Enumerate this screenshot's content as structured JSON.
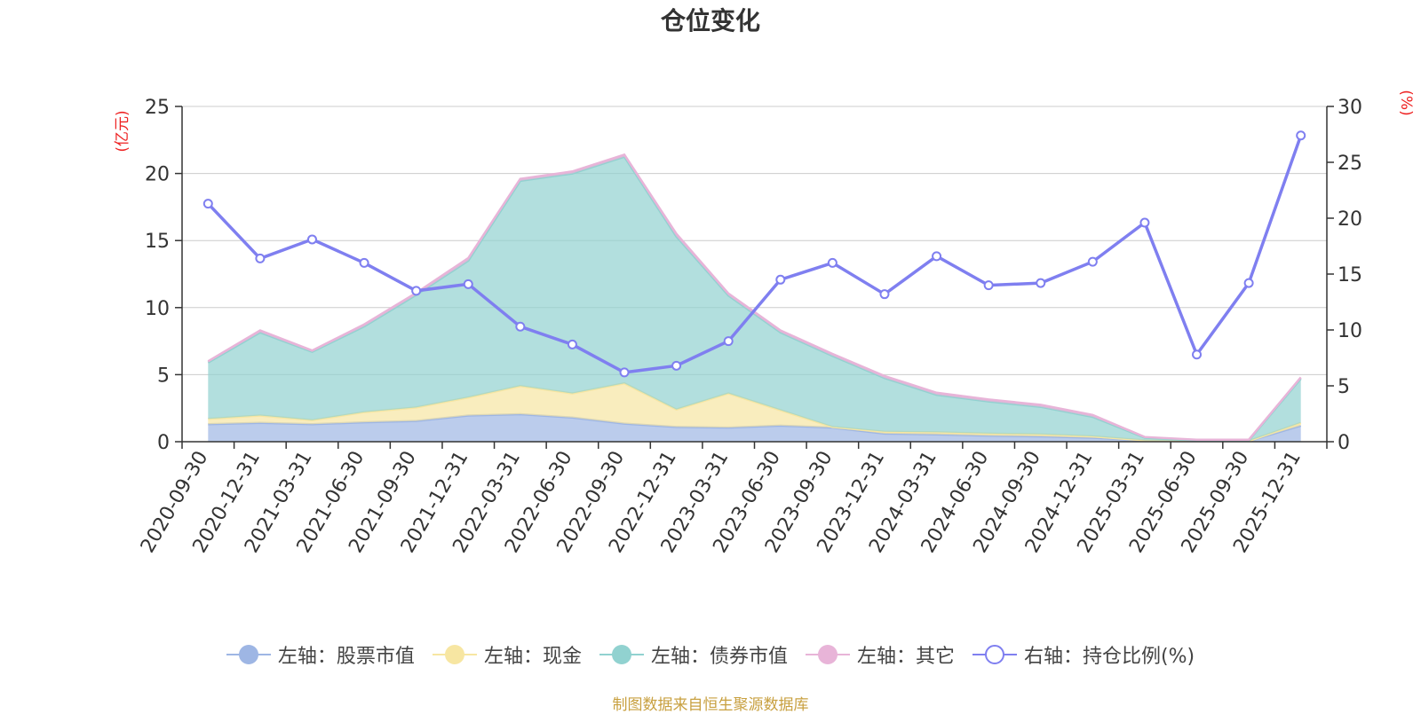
{
  "title": "仓位变化",
  "footer": "制图数据来自恒生聚源数据库",
  "chart_data": {
    "type": "area",
    "title": "仓位变化",
    "left_axis": {
      "label": "(亿元)",
      "min": 0,
      "max": 25,
      "ticks": [
        "0",
        "5",
        "10",
        "15",
        "20",
        "25"
      ]
    },
    "right_axis": {
      "label": "(%)",
      "min": 0,
      "max": 30,
      "ticks": [
        "0",
        "5",
        "10",
        "15",
        "20",
        "25",
        "30"
      ]
    },
    "categories": [
      "2020-09-30",
      "2020-12-31",
      "2021-03-31",
      "2021-06-30",
      "2021-09-30",
      "2021-12-31",
      "2022-03-31",
      "2022-06-30",
      "2022-09-30",
      "2022-12-31",
      "2023-03-31",
      "2023-06-30",
      "2023-09-30",
      "2023-12-31",
      "2024-03-31",
      "2024-06-30",
      "2024-09-30",
      "2024-12-31",
      "2025-03-31",
      "2025-06-30",
      "2025-09-30",
      "2025-12-31"
    ],
    "series": [
      {
        "name": "左轴：股票市值",
        "axis": "left",
        "stack": true,
        "color": "#9eb6e4",
        "values": [
          1.3,
          1.4,
          1.3,
          1.45,
          1.55,
          1.95,
          2.05,
          1.8,
          1.35,
          1.1,
          1.05,
          1.2,
          1.05,
          0.6,
          0.55,
          0.45,
          0.4,
          0.3,
          0.1,
          0.05,
          0.05,
          1.2
        ]
      },
      {
        "name": "左轴：现金",
        "axis": "left",
        "stack": true,
        "color": "#f7e6a2",
        "values": [
          0.4,
          0.55,
          0.3,
          0.75,
          1.0,
          1.35,
          2.1,
          1.8,
          3.0,
          1.3,
          2.55,
          1.15,
          0.05,
          0.15,
          0.15,
          0.15,
          0.15,
          0.1,
          0.0,
          0.0,
          0.0,
          0.2
        ]
      },
      {
        "name": "左轴：债券市值",
        "axis": "left",
        "stack": true,
        "color": "#91d2d0",
        "values": [
          4.2,
          6.2,
          5.1,
          6.4,
          8.4,
          10.2,
          15.3,
          16.4,
          16.9,
          12.9,
          7.3,
          5.8,
          5.3,
          4.0,
          2.8,
          2.4,
          2.05,
          1.45,
          0.2,
          0.05,
          0.05,
          3.3
        ]
      },
      {
        "name": "左轴：其它",
        "axis": "left",
        "stack": true,
        "color": "#e8b4d8",
        "values": [
          0.1,
          0.15,
          0.1,
          0.15,
          0.15,
          0.2,
          0.15,
          0.15,
          0.15,
          0.2,
          0.15,
          0.15,
          0.15,
          0.15,
          0.15,
          0.15,
          0.15,
          0.15,
          0.05,
          0.05,
          0.05,
          0.1
        ]
      },
      {
        "name": "右轴：持仓比例(%)",
        "axis": "right",
        "stack": false,
        "color": "#7f7ff0",
        "values": [
          21.3,
          16.4,
          18.1,
          16.0,
          13.5,
          14.1,
          10.3,
          8.7,
          6.2,
          6.8,
          9.0,
          14.5,
          16.0,
          13.2,
          16.6,
          14.0,
          14.2,
          16.1,
          19.6,
          7.8,
          14.2,
          27.4
        ]
      }
    ]
  }
}
